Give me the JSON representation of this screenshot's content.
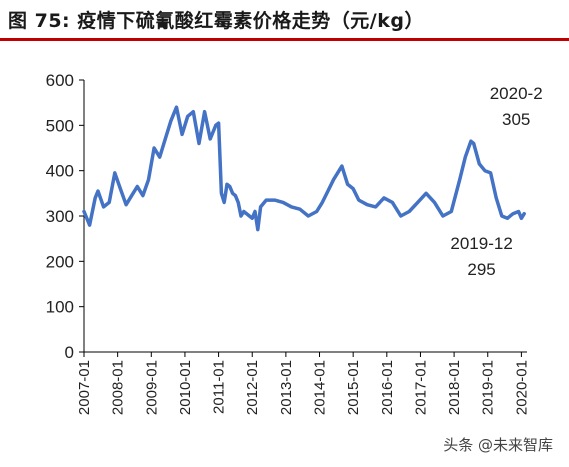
{
  "title": "图 75:  疫情下硫氰酸红霉素价格走势（元/kg）",
  "watermark": "头条 @未来智库",
  "colors": {
    "line": "#4472c4",
    "title_rule": "#c00000",
    "axis": "#000000"
  },
  "chart_data": {
    "type": "line",
    "title": "图 75:  疫情下硫氰酸红霉素价格走势（元/kg）",
    "xlabel": "",
    "ylabel": "",
    "ylim": [
      0,
      600
    ],
    "yticks": [
      0,
      100,
      200,
      300,
      400,
      500,
      600
    ],
    "xlim": [
      "2007-01",
      "2020-03"
    ],
    "xticks": [
      "2007-01",
      "2008-01",
      "2009-01",
      "2010-01",
      "2011-01",
      "2012-01",
      "2013-01",
      "2014-01",
      "2015-01",
      "2016-01",
      "2017-01",
      "2018-01",
      "2019-01",
      "2020-01"
    ],
    "grid": false,
    "annotations": [
      {
        "lines": [
          "2020-2",
          "305"
        ],
        "x": "2020-02",
        "y": 305
      },
      {
        "lines": [
          "2019-12",
          "295"
        ],
        "x": "2019-12",
        "y": 295
      }
    ],
    "series": [
      {
        "x": [
          "2007-01",
          "2007-03",
          "2007-05",
          "2007-06",
          "2007-08",
          "2007-10",
          "2007-12",
          "2008-02",
          "2008-04",
          "2008-06",
          "2008-08",
          "2008-10",
          "2008-12",
          "2009-02",
          "2009-04",
          "2009-06",
          "2009-08",
          "2009-10",
          "2009-12",
          "2010-02",
          "2010-04",
          "2010-06",
          "2010-08",
          "2010-10",
          "2010-12",
          "2011-01",
          "2011-02",
          "2011-03",
          "2011-04",
          "2011-05",
          "2011-06",
          "2011-07",
          "2011-08",
          "2011-09",
          "2011-10",
          "2011-11",
          "2011-12",
          "2012-01",
          "2012-02",
          "2012-03",
          "2012-04",
          "2012-06",
          "2012-09",
          "2012-12",
          "2013-03",
          "2013-06",
          "2013-09",
          "2013-12",
          "2014-02",
          "2014-04",
          "2014-06",
          "2014-09",
          "2014-11",
          "2015-01",
          "2015-03",
          "2015-06",
          "2015-09",
          "2015-12",
          "2016-03",
          "2016-06",
          "2016-09",
          "2016-12",
          "2017-03",
          "2017-06",
          "2017-09",
          "2017-12",
          "2018-03",
          "2018-05",
          "2018-07",
          "2018-08",
          "2018-10",
          "2018-12",
          "2019-02",
          "2019-04",
          "2019-06",
          "2019-08",
          "2019-10",
          "2019-12",
          "2020-01",
          "2020-02"
        ],
        "values": [
          310,
          280,
          340,
          355,
          320,
          330,
          395,
          360,
          325,
          345,
          365,
          345,
          380,
          450,
          430,
          470,
          510,
          540,
          480,
          520,
          530,
          460,
          530,
          470,
          500,
          505,
          350,
          330,
          370,
          365,
          350,
          345,
          330,
          300,
          310,
          305,
          300,
          295,
          310,
          270,
          320,
          335,
          335,
          330,
          320,
          315,
          300,
          310,
          330,
          355,
          380,
          410,
          370,
          360,
          335,
          325,
          320,
          340,
          330,
          300,
          310,
          330,
          350,
          330,
          300,
          310,
          380,
          430,
          465,
          460,
          415,
          400,
          395,
          340,
          300,
          295,
          305,
          310,
          295,
          305
        ]
      }
    ]
  }
}
